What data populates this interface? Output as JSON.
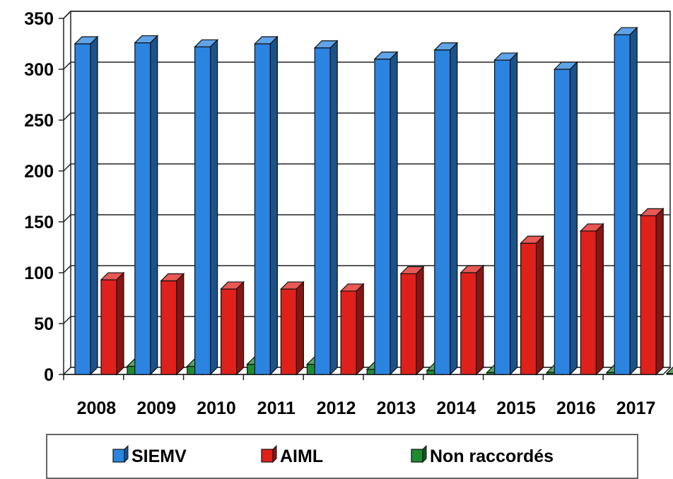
{
  "chart_data": {
    "type": "bar",
    "categories": [
      "2008",
      "2009",
      "2010",
      "2011",
      "2012",
      "2013",
      "2014",
      "2015",
      "2016",
      "2017"
    ],
    "series": [
      {
        "name": "SIEMV",
        "values": [
          325,
          326,
          322,
          325,
          321,
          310,
          319,
          309,
          300,
          334
        ],
        "color": "#2A84E0"
      },
      {
        "name": "AIML",
        "values": [
          93,
          92,
          84,
          84,
          82,
          99,
          100,
          129,
          141,
          156
        ],
        "color": "#E0201B"
      },
      {
        "name": "Non raccordés",
        "values": [
          8,
          8,
          10,
          10,
          5,
          4,
          2,
          2,
          2,
          1
        ],
        "color": "#1E8A32"
      }
    ],
    "yticks": [
      "0",
      "50",
      "100",
      "150",
      "200",
      "250",
      "300",
      "350"
    ],
    "ylim": [
      0,
      350
    ],
    "grid": true,
    "legend_position": "bottom"
  }
}
